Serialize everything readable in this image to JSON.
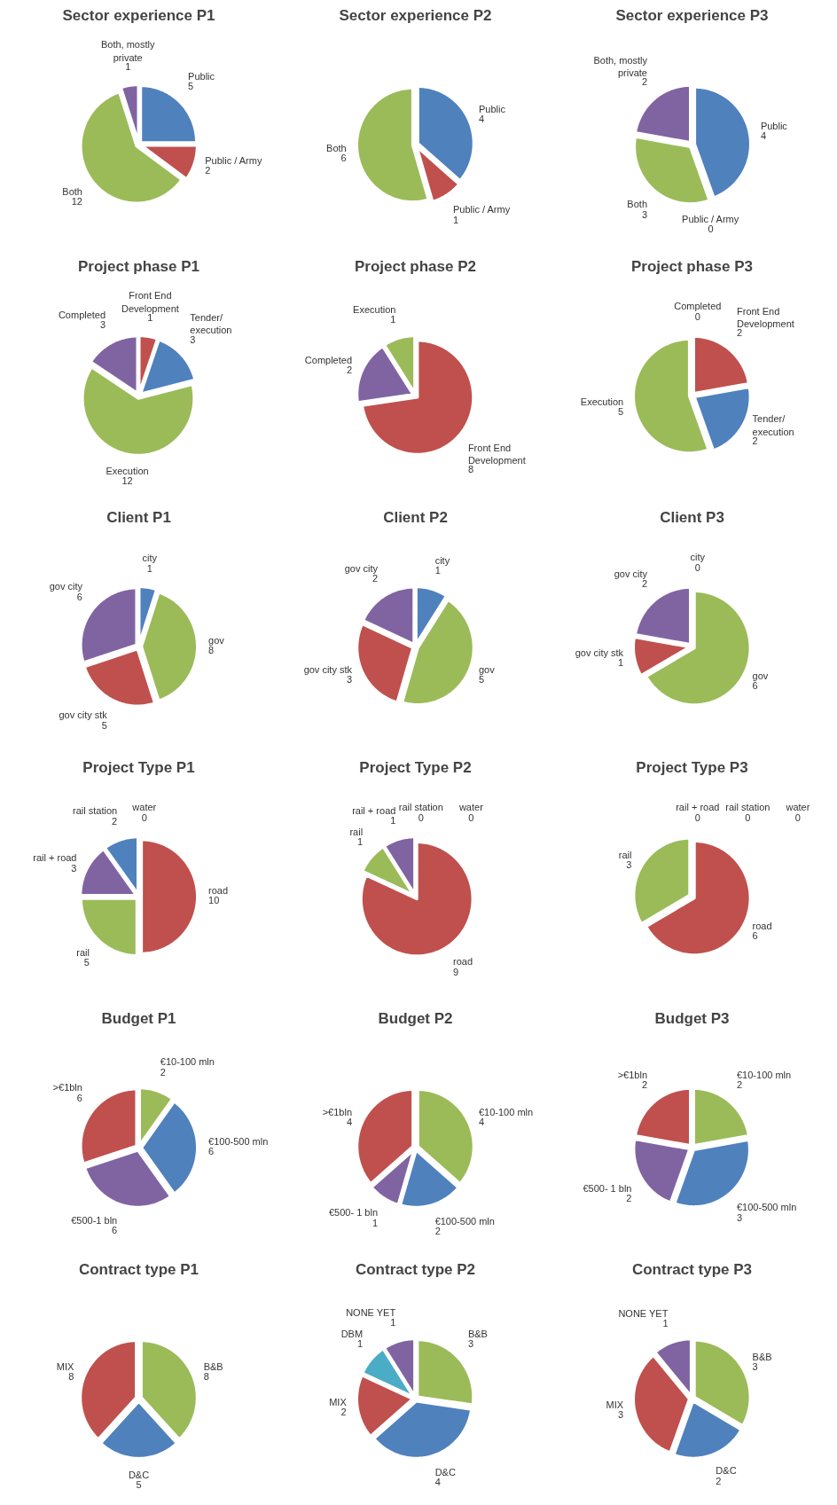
{
  "chart_data": [
    {
      "type": "pie",
      "title": "Sector experience P1",
      "categories": [
        "Public",
        "Public / Army",
        "Both",
        "Both, mostly private"
      ],
      "values": [
        5,
        2,
        12,
        1
      ],
      "colors": [
        "#4f81bd",
        "#c0504d",
        "#9bbb59",
        "#8064a2"
      ],
      "data_labels": true
    },
    {
      "type": "pie",
      "title": "Sector experience P2",
      "categories": [
        "Public",
        "Public / Army",
        "Both"
      ],
      "values": [
        4,
        1,
        6
      ],
      "colors": [
        "#4f81bd",
        "#c0504d",
        "#9bbb59"
      ],
      "data_labels": true
    },
    {
      "type": "pie",
      "title": "Sector experience P3",
      "categories": [
        "Public",
        "Public / Army",
        "Both",
        "Both, mostly private"
      ],
      "values": [
        4,
        0,
        3,
        2
      ],
      "colors": [
        "#4f81bd",
        "#c0504d",
        "#9bbb59",
        "#8064a2"
      ],
      "value_labels": [
        "4",
        "0",
        "3",
        "2"
      ]
    },
    {
      "type": "pie",
      "title": "Project phase P1",
      "categories": [
        "Front End Development",
        "Tender/ execution",
        "Execution",
        "Completed"
      ],
      "values": [
        1,
        3,
        12,
        3
      ],
      "colors": [
        "#c0504d",
        "#4f81bd",
        "#9bbb59",
        "#8064a2"
      ],
      "data_labels": true
    },
    {
      "type": "pie",
      "title": "Project phase P2",
      "categories": [
        "Front End Development",
        "Completed",
        "Execution"
      ],
      "values": [
        8,
        2,
        1
      ],
      "colors": [
        "#c0504d",
        "#8064a2",
        "#9bbb59"
      ],
      "data_labels": true
    },
    {
      "type": "pie",
      "title": "Project phase P3",
      "categories": [
        "Front End Development",
        "Tender/ execution",
        "Execution",
        "Completed"
      ],
      "values": [
        2,
        2,
        5,
        0
      ],
      "colors": [
        "#c0504d",
        "#4f81bd",
        "#9bbb59",
        "#8064a2"
      ],
      "value_labels": [
        "2",
        "2",
        "5",
        "0"
      ]
    },
    {
      "type": "pie",
      "title": "Client P1",
      "categories": [
        "city",
        "gov",
        "gov city stk",
        "gov city"
      ],
      "values": [
        1,
        8,
        5,
        6
      ],
      "colors": [
        "#4f81bd",
        "#9bbb59",
        "#c0504d",
        "#8064a2"
      ],
      "data_labels": true
    },
    {
      "type": "pie",
      "title": "Client P2",
      "categories": [
        "city",
        "gov",
        "gov city stk",
        "gov city"
      ],
      "values": [
        1,
        5,
        3,
        2
      ],
      "colors": [
        "#4f81bd",
        "#9bbb59",
        "#c0504d",
        "#8064a2"
      ],
      "data_labels": true
    },
    {
      "type": "pie",
      "title": "Client P3",
      "categories": [
        "city",
        "gov",
        "gov city stk",
        "gov city"
      ],
      "values": [
        0,
        6,
        1,
        2
      ],
      "colors": [
        "#4f81bd",
        "#9bbb59",
        "#c0504d",
        "#8064a2"
      ],
      "value_labels": [
        "0",
        "6",
        "1",
        "2"
      ]
    },
    {
      "type": "pie",
      "title": "Project Type P1",
      "categories": [
        "road",
        "rail",
        "rail + road",
        "rail station",
        "water"
      ],
      "values": [
        10,
        5,
        3,
        2,
        0
      ],
      "colors": [
        "#c0504d",
        "#9bbb59",
        "#8064a2",
        "#4f81bd",
        "#4bacc6"
      ],
      "value_labels": [
        "10",
        "5",
        "3",
        "2",
        "0"
      ]
    },
    {
      "type": "pie",
      "title": "Project Type P2",
      "categories": [
        "road",
        "rail",
        "rail + road",
        "rail station",
        "water"
      ],
      "values": [
        9,
        1,
        1,
        0,
        0
      ],
      "colors": [
        "#c0504d",
        "#9bbb59",
        "#8064a2",
        "#4f81bd",
        "#4bacc6"
      ],
      "value_labels": [
        "9",
        "1",
        "1",
        "0",
        "0"
      ]
    },
    {
      "type": "pie",
      "title": "Project Type P3",
      "categories": [
        "road",
        "rail",
        "rail + road",
        "rail station",
        "water"
      ],
      "values": [
        6,
        3,
        0,
        0,
        0
      ],
      "colors": [
        "#c0504d",
        "#9bbb59",
        "#8064a2",
        "#4f81bd",
        "#4bacc6"
      ],
      "value_labels": [
        "6",
        "3",
        "0",
        "0",
        "0"
      ]
    },
    {
      "type": "pie",
      "title": "Budget P1",
      "categories": [
        "€10-100 mln",
        "€100-500 mln",
        "€500-1 bln",
        ">€1bln"
      ],
      "values": [
        2,
        6,
        6,
        6
      ],
      "colors": [
        "#9bbb59",
        "#4f81bd",
        "#8064a2",
        "#c0504d"
      ],
      "data_labels": true
    },
    {
      "type": "pie",
      "title": "Budget P2",
      "categories": [
        "€10-100 mln",
        "€100-500 mln",
        "€500- 1 bln",
        ">€1bln"
      ],
      "values": [
        4,
        2,
        1,
        4
      ],
      "colors": [
        "#9bbb59",
        "#4f81bd",
        "#8064a2",
        "#c0504d"
      ],
      "data_labels": true
    },
    {
      "type": "pie",
      "title": "Budget P3",
      "categories": [
        "€10-100 mln",
        "€100-500 mln",
        "€500- 1 bln",
        ">€1bln"
      ],
      "values": [
        2,
        3,
        2,
        2
      ],
      "colors": [
        "#9bbb59",
        "#4f81bd",
        "#8064a2",
        "#c0504d"
      ],
      "data_labels": true
    },
    {
      "type": "pie",
      "title": "Contract type P1",
      "categories": [
        "B&B",
        "D&C",
        "MIX"
      ],
      "values": [
        8,
        5,
        8
      ],
      "colors": [
        "#9bbb59",
        "#4f81bd",
        "#c0504d"
      ],
      "data_labels": true
    },
    {
      "type": "pie",
      "title": "Contract type P2",
      "categories": [
        "B&B",
        "D&C",
        "MIX",
        "DBM",
        "NONE YET"
      ],
      "values": [
        3,
        4,
        2,
        1,
        1
      ],
      "colors": [
        "#9bbb59",
        "#4f81bd",
        "#c0504d",
        "#4bacc6",
        "#8064a2"
      ],
      "data_labels": true
    },
    {
      "type": "pie",
      "title": "Contract type P3",
      "categories": [
        "B&B",
        "D&C",
        "MIX",
        "NONE YET"
      ],
      "values": [
        3,
        2,
        3,
        1
      ],
      "colors": [
        "#9bbb59",
        "#4f81bd",
        "#c0504d",
        "#8064a2"
      ],
      "data_labels": true
    }
  ]
}
